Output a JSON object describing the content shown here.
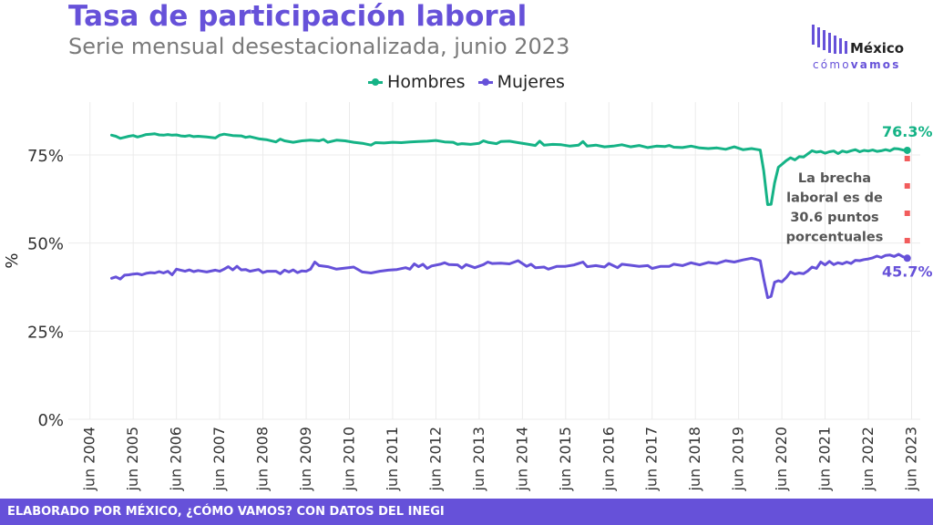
{
  "header": {
    "title": "Tasa de participación laboral",
    "subtitle": "Serie mensual desestacionalizada, junio 2023"
  },
  "logo": {
    "word": "México",
    "tag_a": "cómo",
    "tag_b": "vamos"
  },
  "footer": {
    "text": "ELABORADO POR MÉXICO, ¿CÓMO VAMOS? CON DATOS DEL INEGI"
  },
  "colors": {
    "hombres": "#15b386",
    "mujeres": "#6651d9",
    "brecha": "#f25c5c",
    "brand": "#6651d9"
  },
  "chart_data": {
    "type": "line",
    "ylabel": "%",
    "xlabel": "",
    "ylim": [
      0,
      90
    ],
    "xlim": [
      2004.0,
      2023.7
    ],
    "yticks": [
      0,
      25,
      50,
      75
    ],
    "ytick_labels": [
      "0%",
      "25%",
      "50%",
      "75%"
    ],
    "xticks": [
      2004.5,
      2005.5,
      2006.5,
      2007.5,
      2008.5,
      2009.5,
      2010.5,
      2011.5,
      2012.5,
      2013.5,
      2014.5,
      2015.5,
      2016.5,
      2017.5,
      2018.5,
      2019.5,
      2020.5,
      2021.5,
      2022.5,
      2023.5
    ],
    "xtick_labels": [
      "jun 2004",
      "jun 2005",
      "jun 2006",
      "jun 2007",
      "jun 2008",
      "jun 2009",
      "jun 2010",
      "jun 2011",
      "jun 2012",
      "jun 2013",
      "jun 2014",
      "jun 2015",
      "jun 2016",
      "jun 2017",
      "jun 2018",
      "jun 2019",
      "jun 2020",
      "jun 2021",
      "jun 2022",
      "jun 2023"
    ],
    "grid": true,
    "legend_position": "top-center",
    "series": [
      {
        "name": "Hombres",
        "color": "#15b386",
        "points": [
          [
            2005.0,
            80.6
          ],
          [
            2005.1,
            80.3
          ],
          [
            2005.2,
            79.7
          ],
          [
            2005.3,
            80.0
          ],
          [
            2005.4,
            80.3
          ],
          [
            2005.5,
            80.5
          ],
          [
            2005.6,
            80.1
          ],
          [
            2005.7,
            80.4
          ],
          [
            2005.8,
            80.8
          ],
          [
            2005.9,
            80.9
          ],
          [
            2006.0,
            81.0
          ],
          [
            2006.1,
            80.7
          ],
          [
            2006.2,
            80.6
          ],
          [
            2006.3,
            80.8
          ],
          [
            2006.4,
            80.6
          ],
          [
            2006.5,
            80.7
          ],
          [
            2006.6,
            80.4
          ],
          [
            2006.7,
            80.3
          ],
          [
            2006.8,
            80.5
          ],
          [
            2006.9,
            80.2
          ],
          [
            2007.0,
            80.3
          ],
          [
            2007.2,
            80.1
          ],
          [
            2007.4,
            79.8
          ],
          [
            2007.5,
            80.6
          ],
          [
            2007.6,
            80.9
          ],
          [
            2007.8,
            80.5
          ],
          [
            2008.0,
            80.4
          ],
          [
            2008.1,
            80.0
          ],
          [
            2008.2,
            80.2
          ],
          [
            2008.4,
            79.6
          ],
          [
            2008.6,
            79.3
          ],
          [
            2008.8,
            78.7
          ],
          [
            2008.9,
            79.5
          ],
          [
            2009.0,
            79.0
          ],
          [
            2009.2,
            78.6
          ],
          [
            2009.4,
            79.0
          ],
          [
            2009.6,
            79.2
          ],
          [
            2009.8,
            79.0
          ],
          [
            2009.9,
            79.4
          ],
          [
            2010.0,
            78.6
          ],
          [
            2010.2,
            79.2
          ],
          [
            2010.4,
            79.0
          ],
          [
            2010.6,
            78.6
          ],
          [
            2010.8,
            78.3
          ],
          [
            2011.0,
            77.8
          ],
          [
            2011.1,
            78.5
          ],
          [
            2011.3,
            78.4
          ],
          [
            2011.5,
            78.6
          ],
          [
            2011.7,
            78.5
          ],
          [
            2011.9,
            78.7
          ],
          [
            2012.1,
            78.8
          ],
          [
            2012.3,
            78.9
          ],
          [
            2012.5,
            79.1
          ],
          [
            2012.7,
            78.7
          ],
          [
            2012.9,
            78.6
          ],
          [
            2013.0,
            78.0
          ],
          [
            2013.1,
            78.2
          ],
          [
            2013.3,
            78.0
          ],
          [
            2013.5,
            78.3
          ],
          [
            2013.6,
            79.0
          ],
          [
            2013.7,
            78.6
          ],
          [
            2013.9,
            78.2
          ],
          [
            2014.0,
            78.8
          ],
          [
            2014.2,
            78.9
          ],
          [
            2014.4,
            78.5
          ],
          [
            2014.6,
            78.1
          ],
          [
            2014.8,
            77.7
          ],
          [
            2014.9,
            78.9
          ],
          [
            2015.0,
            77.8
          ],
          [
            2015.2,
            78.0
          ],
          [
            2015.4,
            77.9
          ],
          [
            2015.6,
            77.5
          ],
          [
            2015.8,
            77.8
          ],
          [
            2015.9,
            78.8
          ],
          [
            2016.0,
            77.5
          ],
          [
            2016.2,
            77.8
          ],
          [
            2016.4,
            77.3
          ],
          [
            2016.6,
            77.5
          ],
          [
            2016.8,
            77.9
          ],
          [
            2016.9,
            77.6
          ],
          [
            2017.0,
            77.3
          ],
          [
            2017.2,
            77.7
          ],
          [
            2017.4,
            77.1
          ],
          [
            2017.6,
            77.5
          ],
          [
            2017.8,
            77.4
          ],
          [
            2017.9,
            77.7
          ],
          [
            2018.0,
            77.2
          ],
          [
            2018.2,
            77.1
          ],
          [
            2018.4,
            77.5
          ],
          [
            2018.6,
            77.0
          ],
          [
            2018.8,
            76.8
          ],
          [
            2019.0,
            77.0
          ],
          [
            2019.2,
            76.6
          ],
          [
            2019.4,
            77.3
          ],
          [
            2019.6,
            76.5
          ],
          [
            2019.8,
            76.8
          ],
          [
            2019.9,
            76.6
          ],
          [
            2020.0,
            76.4
          ],
          [
            2020.08,
            70.5
          ],
          [
            2020.17,
            60.9
          ],
          [
            2020.25,
            61.0
          ],
          [
            2020.33,
            67.0
          ],
          [
            2020.42,
            71.5
          ],
          [
            2020.5,
            72.3
          ],
          [
            2020.6,
            73.4
          ],
          [
            2020.7,
            74.2
          ],
          [
            2020.8,
            73.6
          ],
          [
            2020.9,
            74.5
          ],
          [
            2021.0,
            74.4
          ],
          [
            2021.1,
            75.3
          ],
          [
            2021.2,
            76.2
          ],
          [
            2021.3,
            75.8
          ],
          [
            2021.4,
            76.0
          ],
          [
            2021.5,
            75.5
          ],
          [
            2021.6,
            75.9
          ],
          [
            2021.7,
            76.1
          ],
          [
            2021.8,
            75.4
          ],
          [
            2021.9,
            76.1
          ],
          [
            2022.0,
            75.8
          ],
          [
            2022.1,
            76.2
          ],
          [
            2022.2,
            76.5
          ],
          [
            2022.3,
            75.9
          ],
          [
            2022.4,
            76.3
          ],
          [
            2022.5,
            76.1
          ],
          [
            2022.6,
            76.4
          ],
          [
            2022.7,
            76.0
          ],
          [
            2022.8,
            76.2
          ],
          [
            2022.9,
            76.5
          ],
          [
            2023.0,
            76.2
          ],
          [
            2023.1,
            76.8
          ],
          [
            2023.2,
            76.7
          ],
          [
            2023.3,
            76.4
          ],
          [
            2023.4,
            76.3
          ]
        ]
      },
      {
        "name": "Mujeres",
        "color": "#6651d9",
        "points": [
          [
            2005.0,
            40.0
          ],
          [
            2005.1,
            40.4
          ],
          [
            2005.2,
            39.8
          ],
          [
            2005.3,
            40.9
          ],
          [
            2005.4,
            41.0
          ],
          [
            2005.5,
            41.2
          ],
          [
            2005.6,
            41.3
          ],
          [
            2005.7,
            41.0
          ],
          [
            2005.8,
            41.4
          ],
          [
            2005.9,
            41.6
          ],
          [
            2006.0,
            41.5
          ],
          [
            2006.1,
            41.9
          ],
          [
            2006.2,
            41.5
          ],
          [
            2006.3,
            42.0
          ],
          [
            2006.4,
            41.0
          ],
          [
            2006.5,
            42.6
          ],
          [
            2006.6,
            42.3
          ],
          [
            2006.7,
            42.0
          ],
          [
            2006.8,
            42.4
          ],
          [
            2006.9,
            41.9
          ],
          [
            2007.0,
            42.2
          ],
          [
            2007.2,
            41.8
          ],
          [
            2007.4,
            42.3
          ],
          [
            2007.5,
            42.0
          ],
          [
            2007.6,
            42.6
          ],
          [
            2007.7,
            43.3
          ],
          [
            2007.8,
            42.4
          ],
          [
            2007.9,
            43.4
          ],
          [
            2008.0,
            42.4
          ],
          [
            2008.1,
            42.5
          ],
          [
            2008.2,
            42.0
          ],
          [
            2008.4,
            42.5
          ],
          [
            2008.5,
            41.6
          ],
          [
            2008.6,
            42.0
          ],
          [
            2008.8,
            42.0
          ],
          [
            2008.9,
            41.3
          ],
          [
            2009.0,
            42.3
          ],
          [
            2009.1,
            41.8
          ],
          [
            2009.2,
            42.4
          ],
          [
            2009.3,
            41.6
          ],
          [
            2009.4,
            42.1
          ],
          [
            2009.5,
            42.0
          ],
          [
            2009.6,
            42.6
          ],
          [
            2009.7,
            44.6
          ],
          [
            2009.8,
            43.6
          ],
          [
            2010.0,
            43.3
          ],
          [
            2010.2,
            42.6
          ],
          [
            2010.4,
            42.9
          ],
          [
            2010.6,
            43.2
          ],
          [
            2010.8,
            41.8
          ],
          [
            2011.0,
            41.5
          ],
          [
            2011.2,
            42.0
          ],
          [
            2011.4,
            42.3
          ],
          [
            2011.6,
            42.5
          ],
          [
            2011.8,
            43.0
          ],
          [
            2011.9,
            42.6
          ],
          [
            2012.0,
            44.1
          ],
          [
            2012.1,
            43.3
          ],
          [
            2012.2,
            44.0
          ],
          [
            2012.3,
            42.8
          ],
          [
            2012.4,
            43.5
          ],
          [
            2012.6,
            44.0
          ],
          [
            2012.7,
            44.4
          ],
          [
            2012.8,
            43.9
          ],
          [
            2013.0,
            43.8
          ],
          [
            2013.1,
            42.9
          ],
          [
            2013.2,
            43.9
          ],
          [
            2013.4,
            43.0
          ],
          [
            2013.6,
            43.9
          ],
          [
            2013.7,
            44.6
          ],
          [
            2013.8,
            44.2
          ],
          [
            2014.0,
            44.3
          ],
          [
            2014.2,
            44.1
          ],
          [
            2014.4,
            45.0
          ],
          [
            2014.6,
            43.4
          ],
          [
            2014.7,
            44.0
          ],
          [
            2014.8,
            43.0
          ],
          [
            2015.0,
            43.2
          ],
          [
            2015.1,
            42.6
          ],
          [
            2015.3,
            43.4
          ],
          [
            2015.5,
            43.4
          ],
          [
            2015.7,
            43.8
          ],
          [
            2015.9,
            44.6
          ],
          [
            2016.0,
            43.3
          ],
          [
            2016.2,
            43.6
          ],
          [
            2016.4,
            43.2
          ],
          [
            2016.5,
            44.2
          ],
          [
            2016.7,
            43.0
          ],
          [
            2016.8,
            44.0
          ],
          [
            2017.0,
            43.7
          ],
          [
            2017.2,
            43.4
          ],
          [
            2017.4,
            43.6
          ],
          [
            2017.5,
            42.8
          ],
          [
            2017.7,
            43.4
          ],
          [
            2017.9,
            43.4
          ],
          [
            2018.0,
            44.0
          ],
          [
            2018.2,
            43.6
          ],
          [
            2018.4,
            44.4
          ],
          [
            2018.6,
            43.8
          ],
          [
            2018.8,
            44.5
          ],
          [
            2019.0,
            44.2
          ],
          [
            2019.2,
            45.0
          ],
          [
            2019.4,
            44.6
          ],
          [
            2019.6,
            45.2
          ],
          [
            2019.8,
            45.7
          ],
          [
            2019.9,
            45.4
          ],
          [
            2020.0,
            45.0
          ],
          [
            2020.08,
            39.8
          ],
          [
            2020.17,
            34.5
          ],
          [
            2020.25,
            34.9
          ],
          [
            2020.33,
            38.9
          ],
          [
            2020.42,
            39.3
          ],
          [
            2020.5,
            39.0
          ],
          [
            2020.6,
            40.2
          ],
          [
            2020.7,
            41.8
          ],
          [
            2020.8,
            41.2
          ],
          [
            2020.9,
            41.5
          ],
          [
            2021.0,
            41.3
          ],
          [
            2021.1,
            42.1
          ],
          [
            2021.2,
            43.2
          ],
          [
            2021.3,
            42.8
          ],
          [
            2021.4,
            44.6
          ],
          [
            2021.5,
            43.8
          ],
          [
            2021.6,
            44.8
          ],
          [
            2021.7,
            43.9
          ],
          [
            2021.8,
            44.4
          ],
          [
            2021.9,
            44.1
          ],
          [
            2022.0,
            44.6
          ],
          [
            2022.1,
            44.2
          ],
          [
            2022.2,
            45.1
          ],
          [
            2022.3,
            45.0
          ],
          [
            2022.4,
            45.3
          ],
          [
            2022.5,
            45.5
          ],
          [
            2022.6,
            45.8
          ],
          [
            2022.7,
            46.3
          ],
          [
            2022.8,
            45.9
          ],
          [
            2022.9,
            46.5
          ],
          [
            2023.0,
            46.6
          ],
          [
            2023.1,
            46.2
          ],
          [
            2023.2,
            46.8
          ],
          [
            2023.3,
            46.1
          ],
          [
            2023.4,
            45.7
          ]
        ]
      }
    ],
    "end_labels": [
      {
        "series": "Hombres",
        "x": 2023.4,
        "y": 76.3,
        "text": "76.3%"
      },
      {
        "series": "Mujeres",
        "x": 2023.4,
        "y": 45.7,
        "text": "45.7%"
      }
    ],
    "gap_annotation": {
      "x": 2023.4,
      "y_from": 45.7,
      "y_to": 76.3,
      "lines": [
        "La brecha",
        "laboral es de",
        "30.6 puntos",
        "porcentuales"
      ]
    }
  }
}
